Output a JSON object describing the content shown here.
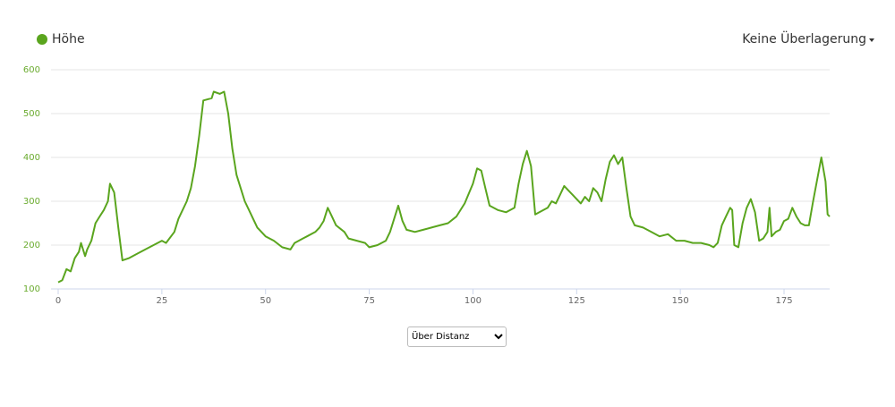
{
  "chart_data": {
    "type": "line",
    "legend_label": "Höhe",
    "overlay_menu": "Keine Überlagerung",
    "x_mode_select": "Über Distanz",
    "x": [
      0,
      1,
      2,
      3,
      4,
      5,
      5.5,
      6.5,
      7,
      8,
      9,
      10,
      11,
      12,
      12.5,
      13.5,
      14.5,
      15.5,
      17,
      19,
      21,
      23,
      25,
      26,
      28,
      29,
      31,
      32,
      33,
      34,
      35,
      37,
      37.5,
      39,
      40,
      41,
      42,
      43,
      44,
      45,
      46,
      47,
      48,
      50,
      52,
      54,
      56,
      57,
      59,
      60,
      62,
      63,
      64,
      65,
      66,
      67,
      69,
      70,
      72,
      74,
      75,
      77,
      79,
      80,
      81,
      82,
      83,
      84,
      86,
      88,
      90,
      92,
      94,
      96,
      98,
      100,
      101,
      102,
      103,
      104,
      106,
      108,
      110,
      111,
      112,
      113,
      114,
      115,
      116,
      118,
      119,
      120,
      121,
      122,
      123,
      124,
      125,
      126,
      127,
      128,
      129,
      130,
      131,
      132,
      133,
      134,
      135,
      136,
      137,
      138,
      139,
      141,
      143,
      145,
      147,
      149,
      151,
      153,
      155,
      157,
      158,
      159,
      160,
      161,
      162,
      162.5,
      163,
      164,
      165,
      166,
      167,
      168,
      169,
      170,
      171,
      171.5,
      172,
      173,
      174,
      175,
      176,
      177,
      178,
      179,
      180,
      181,
      182,
      183,
      184,
      185,
      185.5,
      186
    ],
    "series": [
      {
        "name": "Höhe",
        "color": "#5aa51e",
        "values": [
          115,
          120,
          145,
          140,
          170,
          185,
          205,
          175,
          190,
          210,
          250,
          265,
          280,
          300,
          340,
          320,
          240,
          165,
          170,
          180,
          190,
          200,
          210,
          205,
          230,
          260,
          300,
          330,
          380,
          450,
          530,
          535,
          550,
          545,
          550,
          500,
          420,
          360,
          330,
          300,
          280,
          260,
          240,
          220,
          210,
          195,
          190,
          205,
          215,
          220,
          230,
          240,
          255,
          285,
          265,
          245,
          230,
          215,
          210,
          205,
          195,
          200,
          210,
          230,
          260,
          290,
          255,
          235,
          230,
          235,
          240,
          245,
          250,
          265,
          295,
          340,
          375,
          370,
          330,
          290,
          280,
          275,
          285,
          340,
          385,
          415,
          380,
          270,
          275,
          285,
          300,
          295,
          315,
          335,
          325,
          315,
          305,
          295,
          310,
          300,
          330,
          320,
          300,
          350,
          390,
          405,
          385,
          400,
          330,
          265,
          245,
          240,
          230,
          220,
          225,
          210,
          210,
          205,
          205,
          200,
          195,
          205,
          245,
          265,
          285,
          280,
          200,
          195,
          250,
          285,
          305,
          275,
          210,
          215,
          230,
          285,
          220,
          230,
          235,
          255,
          260,
          285,
          265,
          250,
          245,
          245,
          300,
          350,
          400,
          345,
          270,
          265
        ]
      }
    ],
    "xlim": [
      0,
      186
    ],
    "xticks": [
      0,
      25,
      50,
      75,
      100,
      125,
      150,
      175
    ],
    "ylim": [
      100,
      600
    ],
    "yticks": [
      100,
      200,
      300,
      400,
      500,
      600
    ],
    "grid": true
  }
}
